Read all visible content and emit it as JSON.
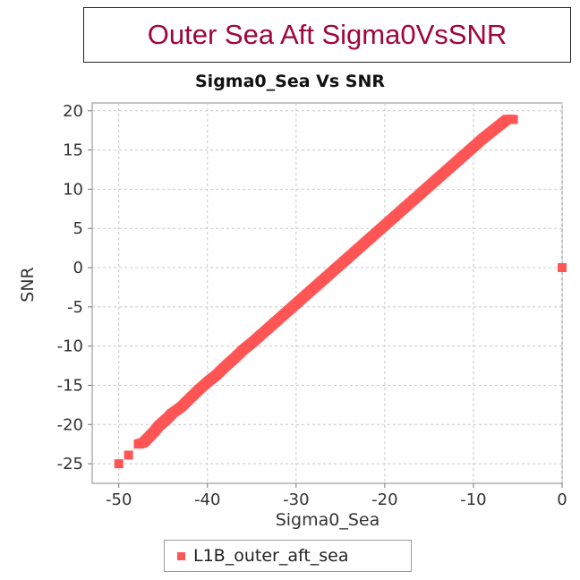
{
  "header": {
    "title": "Outer Sea Aft Sigma0VsSNR"
  },
  "chart_data": {
    "type": "scatter",
    "title": "Sigma0_Sea Vs SNR",
    "xlabel": "Sigma0_Sea",
    "ylabel": "SNR",
    "xlim": [
      -53,
      0
    ],
    "ylim": [
      -27.5,
      21
    ],
    "xticks": [
      -50,
      -40,
      -30,
      -20,
      -10,
      0
    ],
    "yticks": [
      20,
      15,
      10,
      5,
      0,
      -5,
      -10,
      -15,
      -20,
      -25
    ],
    "grid": true,
    "legend_position": "bottom",
    "series": [
      {
        "name": "L1B_outer_aft_sea",
        "color": "#ff5555",
        "points": [
          [
            -50,
            -25
          ],
          [
            -48.9,
            -23.9
          ],
          [
            -47.8,
            -22.5
          ],
          [
            -47.2,
            -22.3
          ],
          [
            -46.6,
            -21.6
          ],
          [
            -46,
            -20.9
          ],
          [
            -45.5,
            -20.2
          ],
          [
            -45,
            -19.7
          ],
          [
            -44.5,
            -19.2
          ],
          [
            -44,
            -18.6
          ],
          [
            -43,
            -17.8
          ],
          [
            -42,
            -16.7
          ],
          [
            -41,
            -15.6
          ],
          [
            -40,
            -14.6
          ],
          [
            -39,
            -13.7
          ],
          [
            -38,
            -12.6
          ],
          [
            -37,
            -11.6
          ],
          [
            -36,
            -10.5
          ],
          [
            -35,
            -9.6
          ],
          [
            -34,
            -8.6
          ],
          [
            -33,
            -7.6
          ],
          [
            -32,
            -6.6
          ],
          [
            -31,
            -5.6
          ],
          [
            -30,
            -4.6
          ],
          [
            -29,
            -3.6
          ],
          [
            -28,
            -2.6
          ],
          [
            -27,
            -1.6
          ],
          [
            -26,
            -0.6
          ],
          [
            -25,
            0.4
          ],
          [
            -24,
            1.4
          ],
          [
            -23,
            2.4
          ],
          [
            -22,
            3.4
          ],
          [
            -21,
            4.4
          ],
          [
            -20,
            5.4
          ],
          [
            -19,
            6.4
          ],
          [
            -18,
            7.4
          ],
          [
            -17,
            8.4
          ],
          [
            -16,
            9.4
          ],
          [
            -15,
            10.4
          ],
          [
            -14,
            11.4
          ],
          [
            -13,
            12.4
          ],
          [
            -12,
            13.4
          ],
          [
            -11,
            14.4
          ],
          [
            -10,
            15.4
          ],
          [
            -9,
            16.4
          ],
          [
            -8,
            17.3
          ],
          [
            -7,
            18.2
          ],
          [
            -6.2,
            18.9
          ],
          [
            -5.5,
            18.9
          ],
          [
            0,
            0
          ]
        ]
      }
    ]
  }
}
